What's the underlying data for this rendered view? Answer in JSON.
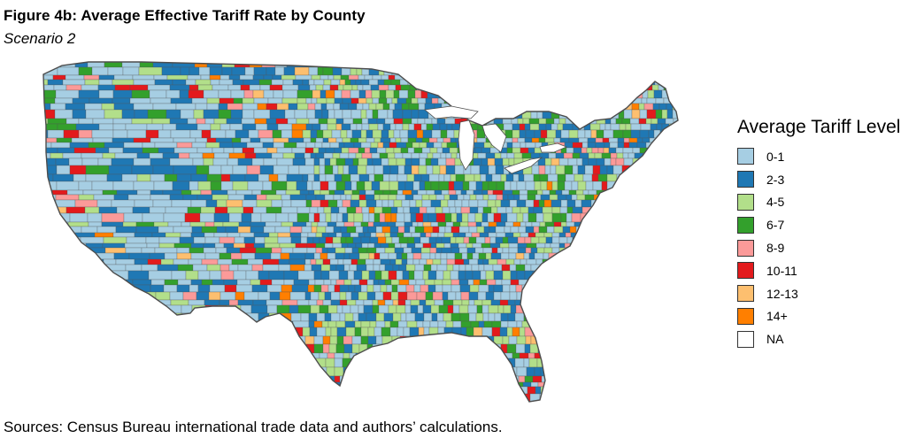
{
  "header": {
    "title": "Figure 4b: Average Effective Tariff Rate by County",
    "subtitle": "Scenario 2"
  },
  "footer": {
    "source": "Sources: Census Bureau international trade data and authors’ calculations."
  },
  "map": {
    "region": "Contiguous United States",
    "unit": "County",
    "border_color": "#4d4d4d"
  },
  "legend": {
    "title": "Average Tariff Level",
    "items": [
      {
        "label": "0-1",
        "color": "#a6cee3"
      },
      {
        "label": "2-3",
        "color": "#1f78b4"
      },
      {
        "label": "4-5",
        "color": "#b2df8a"
      },
      {
        "label": "6-7",
        "color": "#33a02c"
      },
      {
        "label": "8-9",
        "color": "#fb9a99"
      },
      {
        "label": "10-11",
        "color": "#e31a1c"
      },
      {
        "label": "12-13",
        "color": "#fdbf6f"
      },
      {
        "label": "14+",
        "color": "#ff7f00"
      },
      {
        "label": "NA",
        "color": "#ffffff"
      }
    ]
  }
}
